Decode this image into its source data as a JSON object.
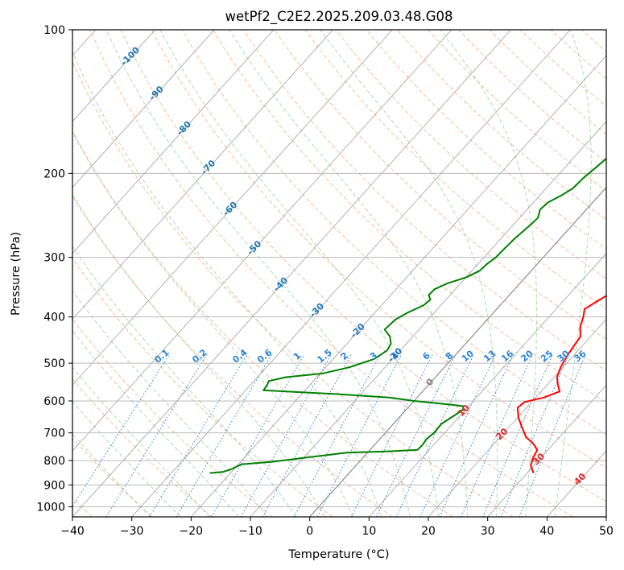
{
  "chart_data": {
    "type": "line",
    "title": "wetPf2_C2E2.2025.209.03.48.G08",
    "xlabel": "Temperature (°C)",
    "ylabel": "Pressure (hPa)",
    "xlim": [
      -40,
      50
    ],
    "ylim": [
      1050,
      100
    ],
    "y_scale": "log",
    "grid": true,
    "x_ticks": [
      "−40",
      "−30",
      "−20",
      "−10",
      "0",
      "10",
      "20",
      "30",
      "40",
      "50"
    ],
    "x_tick_values": [
      -40,
      -30,
      -20,
      -10,
      0,
      10,
      20,
      30,
      40,
      50
    ],
    "y_ticks": [
      "100",
      "200",
      "300",
      "400",
      "500",
      "600",
      "700",
      "800",
      "900",
      "1000"
    ],
    "y_tick_values": [
      100,
      200,
      300,
      400,
      500,
      600,
      700,
      800,
      900,
      1000
    ],
    "series": [
      {
        "name": "",
        "color": "#ff0000",
        "points": [
          [
            31.1,
            850
          ],
          [
            29.5,
            820
          ],
          [
            28.7,
            790
          ],
          [
            28.2,
            760
          ],
          [
            26.4,
            735
          ],
          [
            24.4,
            715
          ],
          [
            22.1,
            680
          ],
          [
            20.1,
            650
          ],
          [
            18.5,
            620
          ],
          [
            18.8,
            603
          ],
          [
            21.4,
            590
          ],
          [
            23.1,
            573
          ],
          [
            21.8,
            555
          ],
          [
            20.5,
            535
          ],
          [
            19.6,
            510
          ],
          [
            19.0,
            485
          ],
          [
            18.6,
            460
          ],
          [
            18.3,
            440
          ],
          [
            16.8,
            420
          ],
          [
            15.8,
            400
          ],
          [
            14.8,
            385
          ],
          [
            15.8,
            370
          ],
          [
            16.9,
            355
          ],
          [
            16.7,
            340
          ],
          [
            15.6,
            330
          ],
          [
            14.4,
            315
          ],
          [
            13.0,
            300
          ],
          [
            11.8,
            285
          ],
          [
            10.0,
            265
          ],
          [
            8.6,
            250
          ],
          [
            7.0,
            235
          ],
          [
            4.9,
            215
          ],
          [
            3.6,
            200
          ],
          [
            2.8,
            187
          ],
          [
            2.8,
            170
          ],
          [
            2.1,
            155
          ],
          [
            0.6,
            142
          ],
          [
            -0.5,
            130
          ],
          [
            -0.2,
            123
          ],
          [
            1.1,
            117
          ],
          [
            3.0,
            112
          ],
          [
            6.3,
            105
          ],
          [
            7.8,
            100
          ]
        ]
      },
      {
        "name": "",
        "color": "#008000",
        "points": [
          [
            -23.5,
            850
          ],
          [
            -21.4,
            845
          ],
          [
            -20.5,
            835
          ],
          [
            -19.5,
            815
          ],
          [
            -14.7,
            805
          ],
          [
            -10.0,
            790
          ],
          [
            -3.5,
            770
          ],
          [
            3.8,
            765
          ],
          [
            8.0,
            760
          ],
          [
            8.1,
            745
          ],
          [
            7.9,
            720
          ],
          [
            8.2,
            700
          ],
          [
            8.1,
            670
          ],
          [
            9.3,
            635
          ],
          [
            9.6,
            625
          ],
          [
            9.0,
            615
          ],
          [
            6.2,
            610
          ],
          [
            0.0,
            600
          ],
          [
            -4.8,
            590
          ],
          [
            -14.6,
            580
          ],
          [
            -27.0,
            570
          ],
          [
            -27.2,
            555
          ],
          [
            -27.5,
            545
          ],
          [
            -25.2,
            535
          ],
          [
            -19.5,
            525
          ],
          [
            -16.0,
            510
          ],
          [
            -13.1,
            490
          ],
          [
            -12.2,
            470
          ],
          [
            -12.6,
            455
          ],
          [
            -13.8,
            440
          ],
          [
            -15.8,
            425
          ],
          [
            -15.5,
            405
          ],
          [
            -14.5,
            392
          ],
          [
            -12.9,
            378
          ],
          [
            -12.6,
            368
          ],
          [
            -13.6,
            360
          ],
          [
            -13.5,
            350
          ],
          [
            -12.2,
            340
          ],
          [
            -9.9,
            330
          ],
          [
            -8.7,
            320
          ],
          [
            -8.5,
            310
          ],
          [
            -8.0,
            300
          ],
          [
            -7.9,
            290
          ],
          [
            -7.7,
            275
          ],
          [
            -7.2,
            260
          ],
          [
            -6.9,
            248
          ],
          [
            -7.8,
            238
          ],
          [
            -7.5,
            230
          ],
          [
            -6.3,
            222
          ],
          [
            -5.5,
            215
          ],
          [
            -5.3,
            205
          ],
          [
            -4.8,
            195
          ],
          [
            -3.8,
            175
          ],
          [
            -2.8,
            158
          ],
          [
            -1.6,
            140
          ],
          [
            -1.0,
            128
          ],
          [
            -1.0,
            120
          ],
          [
            -1.3,
            113
          ],
          [
            -0.6,
            106
          ],
          [
            1.6,
            100
          ]
        ]
      }
    ],
    "mixing_ratio_labels": [
      "0.1",
      "0.2",
      "0.4",
      "0.6",
      "1",
      "1.5",
      "2",
      "3",
      "4",
      "6",
      "8",
      "10",
      "13",
      "16",
      "20",
      "25",
      "30",
      "36"
    ],
    "isotherm_labels": [
      "-100",
      "-90",
      "-80",
      "-70",
      "-60",
      "-50",
      "-40",
      "-30",
      "-20",
      "-10",
      "0",
      "10",
      "20",
      "30",
      "40"
    ]
  }
}
